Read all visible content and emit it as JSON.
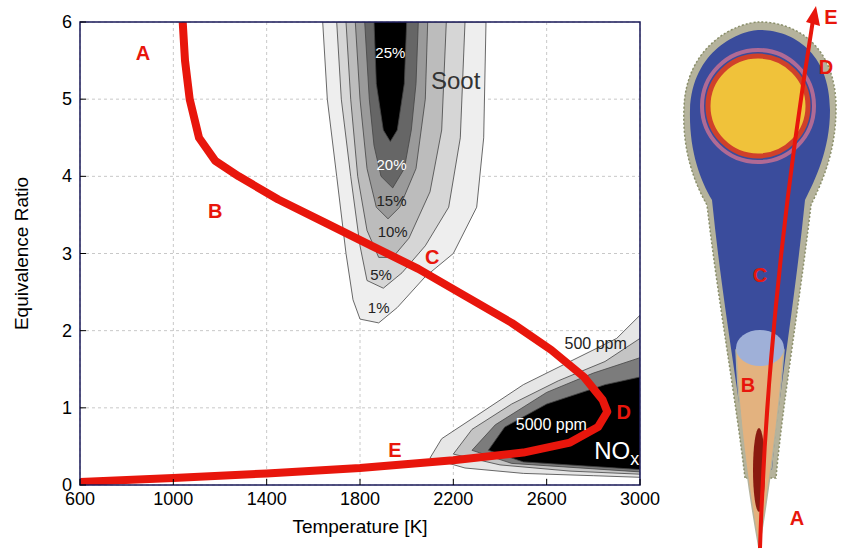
{
  "chart_data": {
    "type": "line",
    "x_label": "Temperature [K]",
    "y_label": "Equivalence Ratio",
    "xlim": [
      600,
      3000
    ],
    "ylim": [
      0,
      6
    ],
    "xticks": [
      600,
      1000,
      1400,
      1800,
      2200,
      2600,
      3000
    ],
    "yticks": [
      0,
      1,
      2,
      3,
      4,
      5,
      6
    ],
    "grid": true,
    "series": [
      {
        "color": "#e8160c",
        "x": [
          1040,
          1050,
          1070,
          1110,
          1180,
          1280,
          1450,
          1650,
          1850,
          2050,
          2250,
          2450,
          2620,
          2760,
          2840,
          2860,
          2820,
          2700,
          2500,
          2200,
          1800,
          1400,
          1000,
          600
        ],
        "values": [
          6,
          5.5,
          5,
          4.5,
          4.2,
          4.0,
          3.7,
          3.4,
          3.1,
          2.8,
          2.45,
          2.1,
          1.75,
          1.4,
          1.1,
          0.95,
          0.75,
          0.55,
          0.42,
          0.32,
          0.22,
          0.15,
          0.09,
          0.04
        ]
      }
    ],
    "point_labels": [
      {
        "text": "A",
        "x": 870,
        "y": 5.6
      },
      {
        "text": "B",
        "x": 1180,
        "y": 3.55
      },
      {
        "text": "C",
        "x": 2110,
        "y": 2.95
      },
      {
        "text": "D",
        "x": 2930,
        "y": 0.95
      },
      {
        "text": "E",
        "x": 1950,
        "y": 0.45
      }
    ],
    "soot_contours": [
      {
        "level": 1,
        "label": "1%",
        "label_at": [
          1880,
          2.3
        ],
        "color": "#eeeeee",
        "x": [
          1640,
          1660,
          1700,
          1740,
          1770,
          1800,
          1880,
          1960,
          2080,
          2200,
          2300,
          2330,
          2340
        ],
        "y": [
          6,
          5,
          4,
          3,
          2.4,
          2.15,
          2.1,
          2.3,
          2.7,
          3.0,
          3.6,
          4.5,
          6
        ]
      },
      {
        "level": 5,
        "label": "5%",
        "label_at": [
          1890,
          2.72
        ],
        "color": "#d6d6d6",
        "x": [
          1700,
          1720,
          1760,
          1800,
          1830,
          1900,
          1980,
          2080,
          2180,
          2230,
          2250
        ],
        "y": [
          6,
          5,
          4,
          3.1,
          2.65,
          2.55,
          2.75,
          3.1,
          3.6,
          4.5,
          6
        ]
      },
      {
        "level": 10,
        "label": "10%",
        "label_at": [
          1940,
          3.28
        ],
        "color": "#bcbcbc",
        "x": [
          1740,
          1760,
          1790,
          1830,
          1880,
          1940,
          2010,
          2100,
          2150,
          2170
        ],
        "y": [
          6,
          5,
          4,
          3.3,
          2.95,
          2.95,
          3.2,
          3.8,
          4.6,
          6
        ]
      },
      {
        "level": 15,
        "label": "15%",
        "label_at": [
          1935,
          3.68
        ],
        "color": "#9a9a9a",
        "x": [
          1780,
          1800,
          1830,
          1870,
          1920,
          1970,
          2040,
          2080,
          2090
        ],
        "y": [
          6,
          5,
          4.1,
          3.6,
          3.45,
          3.6,
          4.1,
          5,
          6
        ]
      },
      {
        "level": 20,
        "label": "20%",
        "label_at": [
          1935,
          4.15
        ],
        "color": "#666666",
        "x": [
          1820,
          1840,
          1860,
          1890,
          1940,
          1990,
          2020,
          2040,
          2050
        ],
        "y": [
          6,
          5,
          4.4,
          4.0,
          3.85,
          4.1,
          4.6,
          5.2,
          6
        ]
      },
      {
        "level": 25,
        "label": "25%",
        "label_at": [
          1930,
          5.6
        ],
        "color": "#000000",
        "x": [
          1860,
          1870,
          1900,
          1930,
          1960,
          1990,
          2000
        ],
        "y": [
          6,
          5.2,
          4.6,
          4.45,
          4.6,
          5.2,
          6
        ]
      }
    ],
    "nox_contours": [
      {
        "level": 500,
        "label": "500 ppm",
        "label_at": [
          2810,
          1.84
        ],
        "color": "#e6e6e6",
        "x": [
          2100,
          2250,
          2500,
          2800,
          3000,
          3000,
          2900,
          2700,
          2500,
          2300,
          2150
        ],
        "y": [
          0.35,
          0.22,
          0.15,
          0.12,
          0.1,
          2.2,
          1.9,
          1.6,
          1.3,
          0.9,
          0.6
        ]
      },
      {
        "level": 1000,
        "label": null,
        "label_at": null,
        "color": "#c4c4c4",
        "x": [
          2200,
          2400,
          2700,
          3000,
          3000,
          2850,
          2650,
          2450,
          2280
        ],
        "y": [
          0.4,
          0.26,
          0.18,
          0.14,
          1.9,
          1.6,
          1.35,
          1.05,
          0.72
        ]
      },
      {
        "level": 2000,
        "label": null,
        "label_at": null,
        "color": "#7c7c7c",
        "x": [
          2280,
          2450,
          3000,
          3000,
          2800,
          2600,
          2380
        ],
        "y": [
          0.45,
          0.28,
          0.17,
          1.65,
          1.45,
          1.2,
          0.78
        ]
      },
      {
        "level": 5000,
        "label": "5000 ppm",
        "label_at": [
          2620,
          0.78
        ],
        "color": "#000000",
        "x": [
          2350,
          2500,
          3000,
          3000,
          2850,
          2600,
          2420
        ],
        "y": [
          0.45,
          0.3,
          0.2,
          1.4,
          1.3,
          1.05,
          0.75
        ]
      }
    ],
    "annotations": [
      {
        "text": "Soot",
        "x": 2210,
        "y": 5.25,
        "color": "#333333"
      },
      {
        "text": "NO",
        "subscript": "x",
        "x": 2900,
        "y": 0.45,
        "color": "#ffffff"
      }
    ]
  },
  "diagram": {
    "labels": [
      "A",
      "B",
      "C",
      "D",
      "E"
    ]
  }
}
